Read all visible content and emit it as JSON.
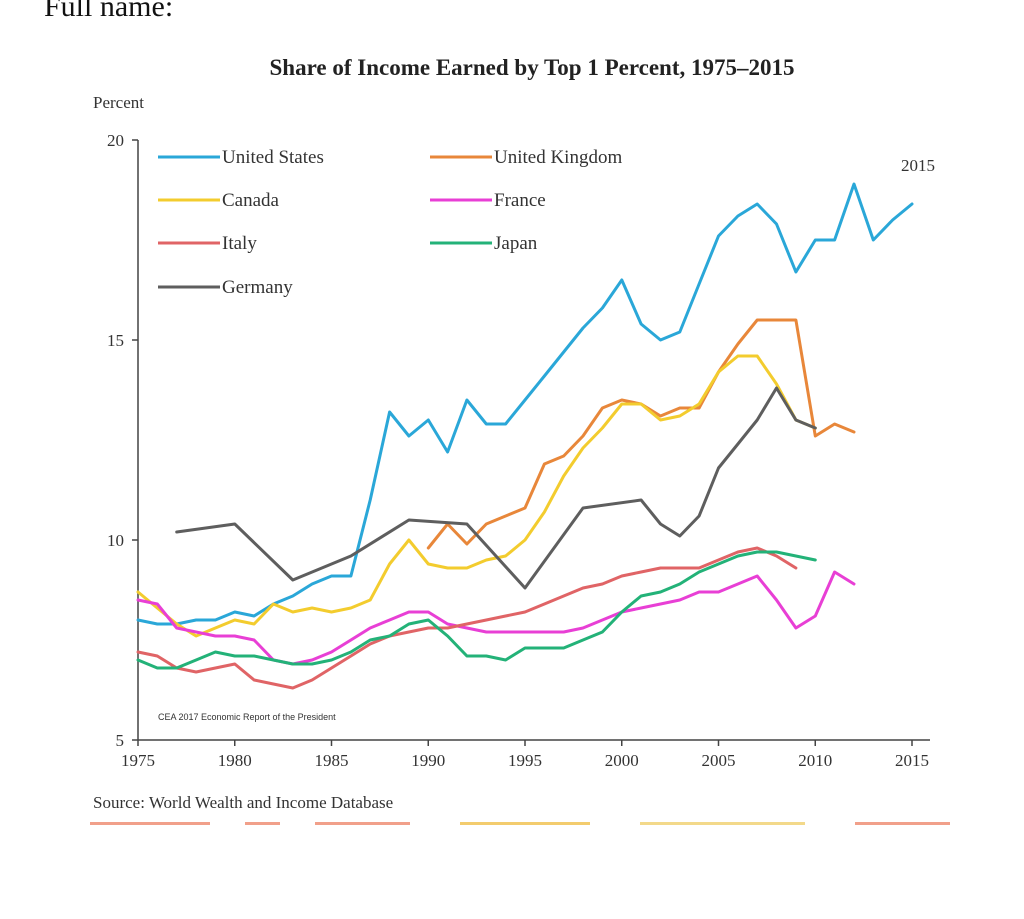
{
  "page": {
    "header_text": "Full name:"
  },
  "chart_data": {
    "type": "line",
    "title": "Share of Income Earned by Top 1 Percent, 1975–2015",
    "ylabel": "Percent",
    "xlabel": "",
    "xlim": [
      1975,
      2015
    ],
    "ylim": [
      5,
      20
    ],
    "x_ticks": [
      1975,
      1980,
      1985,
      1990,
      1995,
      2000,
      2005,
      2010,
      2015
    ],
    "y_ticks": [
      5,
      10,
      15,
      20
    ],
    "annotation": "2015",
    "credit": "CEA 2017 Economic Report of the President",
    "source": "Source: World Wealth and Income Database",
    "legend_position": "top-left",
    "grid": false,
    "series": [
      {
        "name": "United States",
        "color": "#2aa7d8",
        "x": [
          1975,
          1976,
          1977,
          1978,
          1979,
          1980,
          1981,
          1982,
          1983,
          1984,
          1985,
          1986,
          1987,
          1988,
          1989,
          1990,
          1991,
          1992,
          1993,
          1994,
          1995,
          1996,
          1997,
          1998,
          1999,
          2000,
          2001,
          2002,
          2003,
          2004,
          2005,
          2006,
          2007,
          2008,
          2009,
          2010,
          2011,
          2012,
          2013,
          2014,
          2015
        ],
        "y": [
          8.0,
          7.9,
          7.9,
          8.0,
          8.0,
          8.2,
          8.1,
          8.4,
          8.6,
          8.9,
          9.1,
          9.1,
          11.0,
          13.2,
          12.6,
          13.0,
          12.2,
          13.5,
          12.9,
          12.9,
          13.5,
          14.1,
          14.7,
          15.3,
          15.8,
          16.5,
          15.4,
          15.0,
          15.2,
          16.4,
          17.6,
          18.1,
          18.4,
          17.9,
          16.7,
          17.5,
          17.5,
          18.9,
          17.5,
          18.0,
          18.4
        ]
      },
      {
        "name": "United Kingdom",
        "color": "#e8873a",
        "x": [
          1990,
          1991,
          1992,
          1993,
          1994,
          1995,
          1996,
          1997,
          1998,
          1999,
          2000,
          2001,
          2002,
          2003,
          2004,
          2005,
          2006,
          2007,
          2008,
          2009,
          2010,
          2011,
          2012
        ],
        "y": [
          9.8,
          10.4,
          9.9,
          10.4,
          10.6,
          10.8,
          11.9,
          12.1,
          12.6,
          13.3,
          13.5,
          13.4,
          13.1,
          13.3,
          13.3,
          14.2,
          14.9,
          15.5,
          15.5,
          15.5,
          12.6,
          12.9,
          12.7
        ]
      },
      {
        "name": "Canada",
        "color": "#f3cc2e",
        "x": [
          1975,
          1976,
          1977,
          1978,
          1979,
          1980,
          1981,
          1982,
          1983,
          1984,
          1985,
          1986,
          1987,
          1988,
          1989,
          1990,
          1991,
          1992,
          1993,
          1994,
          1995,
          1996,
          1997,
          1998,
          1999,
          2000,
          2001,
          2002,
          2003,
          2004,
          2005,
          2006,
          2007,
          2008,
          2009,
          2010
        ],
        "y": [
          8.7,
          8.3,
          7.9,
          7.6,
          7.8,
          8.0,
          7.9,
          8.4,
          8.2,
          8.3,
          8.2,
          8.3,
          8.5,
          9.4,
          10.0,
          9.4,
          9.3,
          9.3,
          9.5,
          9.6,
          10.0,
          10.7,
          11.6,
          12.3,
          12.8,
          13.4,
          13.4,
          13.0,
          13.1,
          13.4,
          14.2,
          14.6,
          14.6,
          13.9,
          13.0,
          12.8
        ]
      },
      {
        "name": "France",
        "color": "#e83fd5",
        "x": [
          1975,
          1976,
          1977,
          1978,
          1979,
          1980,
          1981,
          1982,
          1983,
          1984,
          1985,
          1986,
          1987,
          1988,
          1989,
          1990,
          1991,
          1992,
          1993,
          1994,
          1995,
          1996,
          1997,
          1998,
          1999,
          2000,
          2001,
          2002,
          2003,
          2004,
          2005,
          2006,
          2007,
          2008,
          2009,
          2010,
          2011,
          2012
        ],
        "y": [
          8.5,
          8.4,
          7.8,
          7.7,
          7.6,
          7.6,
          7.5,
          7.0,
          6.9,
          7.0,
          7.2,
          7.5,
          7.8,
          8.0,
          8.2,
          8.2,
          7.9,
          7.8,
          7.7,
          7.7,
          7.7,
          7.7,
          7.7,
          7.8,
          8.0,
          8.2,
          8.3,
          8.4,
          8.5,
          8.7,
          8.7,
          8.9,
          9.1,
          8.5,
          7.8,
          8.1,
          9.2,
          8.9
        ]
      },
      {
        "name": "Italy",
        "color": "#e06466",
        "x": [
          1975,
          1976,
          1977,
          1978,
          1979,
          1980,
          1981,
          1982,
          1983,
          1984,
          1985,
          1986,
          1987,
          1988,
          1989,
          1990,
          1991,
          1992,
          1993,
          1994,
          1995,
          1996,
          1997,
          1998,
          1999,
          2000,
          2001,
          2002,
          2003,
          2004,
          2005,
          2006,
          2007,
          2008,
          2009
        ],
        "y": [
          7.2,
          7.1,
          6.8,
          6.7,
          6.8,
          6.9,
          6.5,
          6.4,
          6.3,
          6.5,
          6.8,
          7.1,
          7.4,
          7.6,
          7.7,
          7.8,
          7.8,
          7.9,
          8.0,
          8.1,
          8.2,
          8.4,
          8.6,
          8.8,
          8.9,
          9.1,
          9.2,
          9.3,
          9.3,
          9.3,
          9.5,
          9.7,
          9.8,
          9.6,
          9.3
        ]
      },
      {
        "name": "Japan",
        "color": "#23b278",
        "x": [
          1975,
          1976,
          1977,
          1978,
          1979,
          1980,
          1981,
          1982,
          1983,
          1984,
          1985,
          1986,
          1987,
          1988,
          1989,
          1990,
          1991,
          1992,
          1993,
          1994,
          1995,
          1996,
          1997,
          1998,
          1999,
          2000,
          2001,
          2002,
          2003,
          2004,
          2005,
          2006,
          2007,
          2008,
          2009,
          2010
        ],
        "y": [
          7.0,
          6.8,
          6.8,
          7.0,
          7.2,
          7.1,
          7.1,
          7.0,
          6.9,
          6.9,
          7.0,
          7.2,
          7.5,
          7.6,
          7.9,
          8.0,
          7.6,
          7.1,
          7.1,
          7.0,
          7.3,
          7.3,
          7.3,
          7.5,
          7.7,
          8.2,
          8.6,
          8.7,
          8.9,
          9.2,
          9.4,
          9.6,
          9.7,
          9.7,
          9.6,
          9.5
        ]
      },
      {
        "name": "Germany",
        "color": "#5e5e5e",
        "x": [
          1977,
          1980,
          1983,
          1986,
          1989,
          1992,
          1995,
          1998,
          2001,
          2002,
          2003,
          2004,
          2005,
          2006,
          2007,
          2008,
          2009,
          2010
        ],
        "y": [
          10.2,
          10.4,
          9.0,
          9.6,
          10.5,
          10.4,
          8.8,
          10.8,
          11.0,
          10.4,
          10.1,
          10.6,
          11.8,
          12.4,
          13.0,
          13.8,
          13.0,
          12.8
        ]
      }
    ]
  }
}
